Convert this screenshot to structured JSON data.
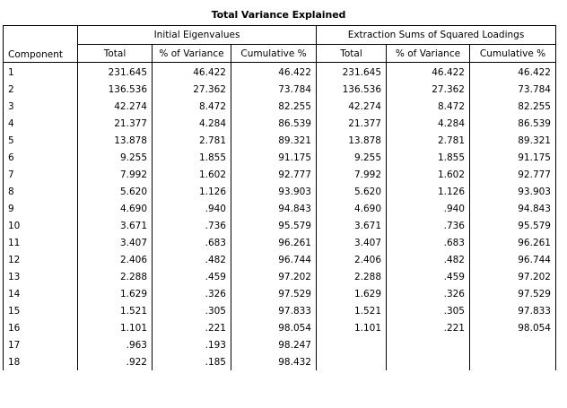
{
  "title": "Total Variance Explained",
  "headers": {
    "component": "Component",
    "initial_group": "Initial Eigenvalues",
    "extraction_group": "Extraction Sums of Squared Loadings",
    "total": "Total",
    "pct_variance": "% of Variance",
    "cumulative": "Cumulative %"
  },
  "rows": [
    {
      "component": "1",
      "init_total": "231.645",
      "init_pct": "46.422",
      "init_cum": "46.422",
      "ext_total": "231.645",
      "ext_pct": "46.422",
      "ext_cum": "46.422"
    },
    {
      "component": "2",
      "init_total": "136.536",
      "init_pct": "27.362",
      "init_cum": "73.784",
      "ext_total": "136.536",
      "ext_pct": "27.362",
      "ext_cum": "73.784"
    },
    {
      "component": "3",
      "init_total": "42.274",
      "init_pct": "8.472",
      "init_cum": "82.255",
      "ext_total": "42.274",
      "ext_pct": "8.472",
      "ext_cum": "82.255"
    },
    {
      "component": "4",
      "init_total": "21.377",
      "init_pct": "4.284",
      "init_cum": "86.539",
      "ext_total": "21.377",
      "ext_pct": "4.284",
      "ext_cum": "86.539"
    },
    {
      "component": "5",
      "init_total": "13.878",
      "init_pct": "2.781",
      "init_cum": "89.321",
      "ext_total": "13.878",
      "ext_pct": "2.781",
      "ext_cum": "89.321"
    },
    {
      "component": "6",
      "init_total": "9.255",
      "init_pct": "1.855",
      "init_cum": "91.175",
      "ext_total": "9.255",
      "ext_pct": "1.855",
      "ext_cum": "91.175"
    },
    {
      "component": "7",
      "init_total": "7.992",
      "init_pct": "1.602",
      "init_cum": "92.777",
      "ext_total": "7.992",
      "ext_pct": "1.602",
      "ext_cum": "92.777"
    },
    {
      "component": "8",
      "init_total": "5.620",
      "init_pct": "1.126",
      "init_cum": "93.903",
      "ext_total": "5.620",
      "ext_pct": "1.126",
      "ext_cum": "93.903"
    },
    {
      "component": "9",
      "init_total": "4.690",
      "init_pct": ".940",
      "init_cum": "94.843",
      "ext_total": "4.690",
      "ext_pct": ".940",
      "ext_cum": "94.843"
    },
    {
      "component": "10",
      "init_total": "3.671",
      "init_pct": ".736",
      "init_cum": "95.579",
      "ext_total": "3.671",
      "ext_pct": ".736",
      "ext_cum": "95.579"
    },
    {
      "component": "11",
      "init_total": "3.407",
      "init_pct": ".683",
      "init_cum": "96.261",
      "ext_total": "3.407",
      "ext_pct": ".683",
      "ext_cum": "96.261"
    },
    {
      "component": "12",
      "init_total": "2.406",
      "init_pct": ".482",
      "init_cum": "96.744",
      "ext_total": "2.406",
      "ext_pct": ".482",
      "ext_cum": "96.744"
    },
    {
      "component": "13",
      "init_total": "2.288",
      "init_pct": ".459",
      "init_cum": "97.202",
      "ext_total": "2.288",
      "ext_pct": ".459",
      "ext_cum": "97.202"
    },
    {
      "component": "14",
      "init_total": "1.629",
      "init_pct": ".326",
      "init_cum": "97.529",
      "ext_total": "1.629",
      "ext_pct": ".326",
      "ext_cum": "97.529"
    },
    {
      "component": "15",
      "init_total": "1.521",
      "init_pct": ".305",
      "init_cum": "97.833",
      "ext_total": "1.521",
      "ext_pct": ".305",
      "ext_cum": "97.833"
    },
    {
      "component": "16",
      "init_total": "1.101",
      "init_pct": ".221",
      "init_cum": "98.054",
      "ext_total": "1.101",
      "ext_pct": ".221",
      "ext_cum": "98.054"
    },
    {
      "component": "17",
      "init_total": ".963",
      "init_pct": ".193",
      "init_cum": "98.247",
      "ext_total": "",
      "ext_pct": "",
      "ext_cum": ""
    },
    {
      "component": "18",
      "init_total": ".922",
      "init_pct": ".185",
      "init_cum": "98.432",
      "ext_total": "",
      "ext_pct": "",
      "ext_cum": ""
    }
  ]
}
